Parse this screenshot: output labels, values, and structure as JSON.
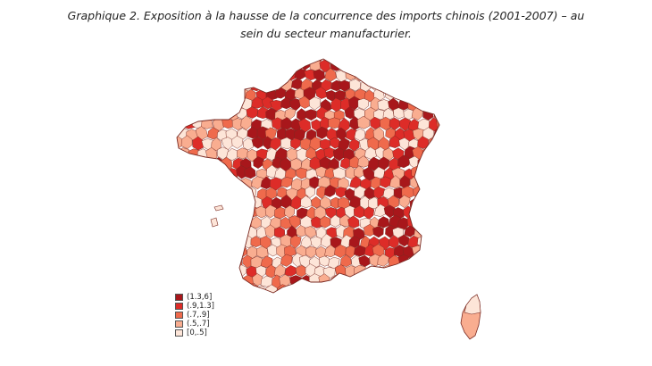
{
  "caption": {
    "line1": "Graphique 2. Exposition à la hausse de la concurrence des imports chinois (2001-2007) – au",
    "line2": "sein du secteur manufacturier."
  },
  "legend": [
    {
      "label": "(1.3,6]",
      "color": "#a8171b"
    },
    {
      "label": "(.9,1.3]",
      "color": "#dd2c28"
    },
    {
      "label": "(.7,.9]",
      "color": "#ef6a4c"
    },
    {
      "label": "(.5,.7]",
      "color": "#f9ad90"
    },
    {
      "label": "[0,.5]",
      "color": "#fde5d8"
    }
  ]
}
